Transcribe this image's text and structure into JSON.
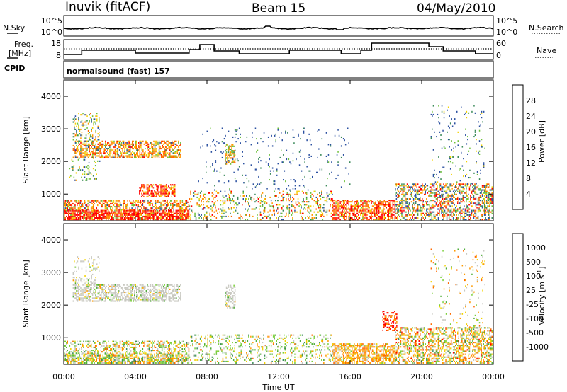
{
  "header": {
    "station": "Inuvik (fitACF)",
    "beam": "Beam 15",
    "date": "04/May/2010"
  },
  "top_panels": {
    "nsky_label": "N.Sky",
    "nsearch_label": "N.Search",
    "freq_label_1": "Freq.",
    "freq_label_2": "[MHz]",
    "nave_label": "Nave",
    "cpid_label": "CPID",
    "cpid_value": "normalsound (fast) 157",
    "nsky_ticks": [
      "10^5",
      "10^0"
    ],
    "nsearch_ticks": [
      "10^5",
      "10^0"
    ],
    "freq_ticks": [
      "18",
      "8"
    ],
    "nave_ticks": [
      "60",
      "0"
    ]
  },
  "chart_data": [
    {
      "type": "heatmap",
      "quantity": "Power",
      "ylabel": "Slant Range [km]",
      "xlabel": "Time UT",
      "colorbar_label": "Power [dB]",
      "colorbar_ticks": [
        "28",
        "24",
        "20",
        "16",
        "12",
        "8",
        "4"
      ],
      "colorbar_colors": [
        "#ff0000",
        "#ff6a00",
        "#ff9a00",
        "#f2d200",
        "#6ec13a",
        "#3c8a5a",
        "#2a4fa0",
        "#1414ff"
      ],
      "xticks": [
        "00:00",
        "04:00",
        "08:00",
        "12:00",
        "16:00",
        "20:00",
        "00:00"
      ],
      "yticks": [
        "4000",
        "3000",
        "2000",
        "1000"
      ],
      "xlim": [
        0,
        24
      ],
      "ylim": [
        180,
        4500
      ],
      "regions": [
        {
          "t0": 0.0,
          "t1": 7.0,
          "r0": 200,
          "r1": 500,
          "weights": [
            0.55,
            0.25,
            0.1,
            0.05,
            0.05,
            0,
            0,
            0
          ],
          "density": 0.8
        },
        {
          "t0": 0.0,
          "t1": 7.0,
          "r0": 500,
          "r1": 800,
          "weights": [
            0.2,
            0.3,
            0.2,
            0.1,
            0.1,
            0.05,
            0.05,
            0
          ],
          "density": 0.5
        },
        {
          "t0": 0.5,
          "t1": 6.5,
          "r0": 2100,
          "r1": 2600,
          "weights": [
            0.1,
            0.3,
            0.25,
            0.15,
            0.1,
            0.05,
            0.05,
            0
          ],
          "density": 0.55
        },
        {
          "t0": 0.5,
          "t1": 2.0,
          "r0": 2600,
          "r1": 3500,
          "weights": [
            0,
            0.1,
            0.15,
            0.2,
            0.2,
            0.2,
            0.15,
            0
          ],
          "density": 0.25
        },
        {
          "t0": 0.3,
          "t1": 2.0,
          "r0": 1400,
          "r1": 2100,
          "weights": [
            0,
            0,
            0.1,
            0.2,
            0.3,
            0.2,
            0.2,
            0
          ],
          "density": 0.12
        },
        {
          "t0": 4.2,
          "t1": 6.2,
          "r0": 900,
          "r1": 1300,
          "weights": [
            0.5,
            0.3,
            0.1,
            0.1,
            0,
            0,
            0,
            0
          ],
          "density": 0.6
        },
        {
          "t0": 7.0,
          "t1": 15.0,
          "r0": 200,
          "r1": 1100,
          "weights": [
            0.1,
            0.15,
            0.15,
            0.15,
            0.2,
            0.15,
            0.1,
            0
          ],
          "density": 0.2
        },
        {
          "t0": 9.0,
          "t1": 9.6,
          "r0": 1900,
          "r1": 2500,
          "weights": [
            0,
            0.2,
            0.3,
            0.2,
            0.2,
            0.1,
            0,
            0
          ],
          "density": 0.5
        },
        {
          "t0": 7.5,
          "t1": 16.0,
          "r0": 1100,
          "r1": 3000,
          "weights": [
            0,
            0,
            0,
            0,
            0.1,
            0.2,
            0.7,
            0
          ],
          "density": 0.04
        },
        {
          "t0": 15.0,
          "t1": 18.5,
          "r0": 200,
          "r1": 800,
          "weights": [
            0.35,
            0.35,
            0.15,
            0.1,
            0.05,
            0,
            0,
            0
          ],
          "density": 0.6
        },
        {
          "t0": 18.5,
          "t1": 24.0,
          "r0": 200,
          "r1": 1300,
          "weights": [
            0.15,
            0.15,
            0.1,
            0.1,
            0.15,
            0.15,
            0.2,
            0
          ],
          "density": 0.45
        },
        {
          "t0": 20.5,
          "t1": 23.5,
          "r0": 1300,
          "r1": 3700,
          "weights": [
            0,
            0,
            0,
            0.1,
            0.2,
            0.2,
            0.5,
            0
          ],
          "density": 0.05
        }
      ]
    },
    {
      "type": "heatmap",
      "quantity": "Velocity",
      "ylabel": "Slant Range [km]",
      "xlabel": "Time UT",
      "colorbar_label": "Velocity [m s^-1]",
      "colorbar_ticks": [
        "1000",
        "500",
        "100",
        "25",
        "-25",
        "-100",
        "-500",
        "-1000"
      ],
      "colorbar_colors": [
        "#2a4fa0",
        "#3c8a5a",
        "#4fae3a",
        "#7bcf3a",
        "#c8c8c0",
        "#f2d200",
        "#ff9a00",
        "#ff6a00",
        "#ff0000"
      ],
      "xticks": [
        "00:00",
        "04:00",
        "08:00",
        "12:00",
        "16:00",
        "20:00",
        "00:00"
      ],
      "yticks": [
        "4000",
        "3000",
        "2000",
        "1000"
      ],
      "xlim": [
        0,
        24
      ],
      "ylim": [
        180,
        4500
      ],
      "regions": [
        {
          "t0": 0.0,
          "t1": 7.0,
          "r0": 200,
          "r1": 500,
          "weights": [
            0,
            0.05,
            0.15,
            0.15,
            0.25,
            0.2,
            0.15,
            0.05,
            0
          ],
          "density": 0.7
        },
        {
          "t0": 0.0,
          "t1": 7.0,
          "r0": 500,
          "r1": 900,
          "weights": [
            0,
            0.05,
            0.15,
            0.2,
            0.2,
            0.15,
            0.15,
            0.1,
            0
          ],
          "density": 0.4
        },
        {
          "t0": 0.5,
          "t1": 6.5,
          "r0": 2100,
          "r1": 2600,
          "weights": [
            0,
            0,
            0.05,
            0.05,
            0.8,
            0.05,
            0.05,
            0,
            0
          ],
          "density": 0.55
        },
        {
          "t0": 0.5,
          "t1": 2.0,
          "r0": 2600,
          "r1": 3500,
          "weights": [
            0,
            0,
            0.05,
            0.1,
            0.7,
            0.1,
            0.05,
            0,
            0
          ],
          "density": 0.2
        },
        {
          "t0": 7.0,
          "t1": 15.0,
          "r0": 200,
          "r1": 1100,
          "weights": [
            0,
            0.1,
            0.2,
            0.2,
            0.2,
            0.15,
            0.1,
            0.05,
            0
          ],
          "density": 0.2
        },
        {
          "t0": 9.0,
          "t1": 9.6,
          "r0": 1900,
          "r1": 2600,
          "weights": [
            0,
            0,
            0.05,
            0.05,
            0.8,
            0.05,
            0.05,
            0,
            0
          ],
          "density": 0.5
        },
        {
          "t0": 15.0,
          "t1": 18.5,
          "r0": 200,
          "r1": 800,
          "weights": [
            0,
            0,
            0,
            0.05,
            0.15,
            0.2,
            0.4,
            0.2,
            0
          ],
          "density": 0.6
        },
        {
          "t0": 18.5,
          "t1": 24.0,
          "r0": 200,
          "r1": 1300,
          "weights": [
            0,
            0.05,
            0.1,
            0.1,
            0.15,
            0.15,
            0.25,
            0.15,
            0.05
          ],
          "density": 0.45
        },
        {
          "t0": 17.8,
          "t1": 18.6,
          "r0": 1200,
          "r1": 1800,
          "weights": [
            0,
            0,
            0,
            0,
            0,
            0,
            0.1,
            0.4,
            0.5
          ],
          "density": 0.4
        },
        {
          "t0": 20.5,
          "t1": 23.5,
          "r0": 1300,
          "r1": 3700,
          "weights": [
            0,
            0,
            0.1,
            0.1,
            0.3,
            0.2,
            0.2,
            0.1,
            0
          ],
          "density": 0.05
        }
      ]
    }
  ]
}
